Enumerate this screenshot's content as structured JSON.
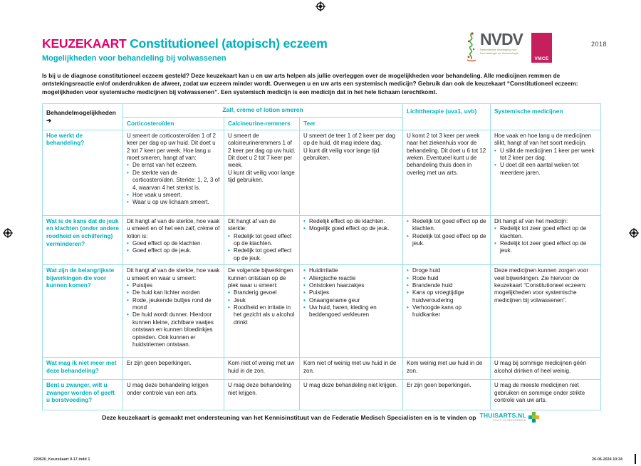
{
  "page": {
    "title_prefix": "KEUZEKAART",
    "title_rest": " Constitutioneel (atopisch) eczeem",
    "subtitle": "Mogelijkheden voor behandeling bij volwassenen",
    "year": "2018",
    "intro": "Is bij u de diagnose constitutioneel eczeem gesteld? Deze keuzekaart kan u en uw arts helpen als jullie overleggen over de mogelijkheden voor behandeling. Alle medicijnen remmen de ontstekingsreactie en/of onderdrukken de afweer, zodat uw eczeem minder wordt. Overwegen u en uw arts een systemisch medicijn? Gebruik dan ook de keuzekaart “Constitutioneel eczeem: mogelijkheden voor systemische medicijnen bij volwassenen”. Een systemisch medicijn is een medicijn dat in het hele lichaam terechtkomt."
  },
  "logos": {
    "nvdv": "NVDV",
    "nvdv_sub_line1": "Nederlandse Vereniging voor",
    "nvdv_sub_line2": "Dermatologie en Venereologie",
    "vmce": "VMCE"
  },
  "colors": {
    "teal": "#00b0ba",
    "pink": "#e2006a",
    "table_border": "#9adfe4",
    "vmce_magenta": "#c51f5d"
  },
  "table": {
    "corner_label": "Behandelmogelijkheden",
    "corner_arrow": "➔",
    "group_header": "Zalf, crème of lotion smeren",
    "sub_columns": [
      "Corticosteroïden",
      "Calcineurine-remmers",
      "Teer"
    ],
    "light_header": "Lichttherapie (uva1, uvb)",
    "systemic_header": "Systemische medicijnen",
    "rows": [
      {
        "label": "Hoe werkt de behandeling?",
        "cells": [
          {
            "intro": "U smeert de corticosteroïden 1 of 2 keer per dag op uw huid. Dit doet u 2 tot 7 keer per week. Hoe lang u moet smeren, hangt af van:",
            "bullets": [
              "De ernst van het eczeem.",
              "De sterkte van de corticosteroïden. Sterkte: 1, 2, 3 of 4, waarvan 4 het sterkst is.",
              "Hoe vaak u smeert.",
              "Waar u op uw lichaam smeert."
            ]
          },
          {
            "intro": "U smeert de calcineurineremmers 1 of 2 keer per dag op uw huid. Dit doet u 2 tot 7 keer per week.\nU kunt dit veilig voor lange tijd gebruiken."
          },
          {
            "intro": "U smeert de teer 1 of 2 keer per dag op de huid, dit mag iedere dag.\nU kunt dit veilig voor lange tijd gebruiken."
          },
          {
            "intro": "U komt 2 tot 3 keer per week naar het ziekenhuis voor de behandeling. Dit doet u 6 tot 12 weken. Eventueel kunt u de behandeling thuis doen in overleg met uw arts."
          },
          {
            "intro": "Hoe vaak en hoe lang u de medicijnen slikt, hangt af van het soort medicijn.",
            "bullets": [
              "U slikt de medicijnen 1 keer per week tot 2 keer per dag.",
              "U doet dit een aantal weken tot meerdere jaren."
            ]
          }
        ]
      },
      {
        "label": "Wat is de kans dat de jeuk en klachten (onder andere roodheid en schilfering) verminderen?",
        "cells": [
          {
            "intro": "Dit hangt af van de sterkte, hoe vaak u smeert en of het een zalf, crème of lotion is:",
            "bullets": [
              "Goed effect op de klachten.",
              "Goed effect op de jeuk."
            ]
          },
          {
            "intro": "Dit hangt af van de sterkte:",
            "bullets": [
              "Redelijk tot goed effect op de klachten.",
              "Redelijk tot goed effect op de jeuk."
            ]
          },
          {
            "bullets": [
              "Redelijk effect op de klachten.",
              "Mogelijk goed effect op de jeuk."
            ]
          },
          {
            "bullets": [
              "Redelijk tot goed effect op de klachten.",
              "Redelijk tot goed effect op de jeuk."
            ]
          },
          {
            "intro": "Dit hangt af van het medicijn:",
            "bullets": [
              "Redelijk tot zeer goed effect op de klachten.",
              "Redelijk tot zeer goed effect op de jeuk."
            ]
          }
        ]
      },
      {
        "label": "Wat zijn de belangrijkste bijwerkingen die voor kunnen komen?",
        "cells": [
          {
            "intro": "Dit hangt af van de sterkte, hoe vaak u smeert en waar u smeert:",
            "bullets": [
              "Puistjes",
              "De huid kan lichter worden",
              "Rode, jeukende bultjes rond de mond",
              "De huid wordt dunner. Hierdoor kunnen kleine, zichtbare vaatjes ontstaan en kunnen bloedinkjes optreden. Ook kunnen er huidstriemen ontstaan."
            ]
          },
          {
            "intro": "De volgende bijwerkingen kunnen ontstaan op de plek waar u smeert:",
            "bullets": [
              "Branderig gevoel",
              "Jeuk",
              "Roodheid en irritatie in het gezicht als u alcohol drinkt"
            ]
          },
          {
            "bullets": [
              "Huidirritatie",
              "Allergische reactie",
              "Ontstoken haarzakjes",
              "Puistjes",
              "Onaangename geur",
              "Uw huid, haren, kleding en beddengoed verkleuren"
            ]
          },
          {
            "bullets": [
              "Droge huid",
              "Rode huid",
              "Brandende huid",
              "Kans op vroegtijdige huidveroudering",
              "Verhoogde kans op huidkanker"
            ]
          },
          {
            "intro": "Deze medicijnen kunnen zorgen voor veel bijwerkingen. Zie hiervoor de keuzekaart “Constitutioneel eczeem: mogelijkheden voor systemische medicijnen bij volwassenen”."
          }
        ]
      },
      {
        "label": "Wat mag ik niet meer met deze behandeling?",
        "cells": [
          {
            "intro": "Er zijn geen beperkingen."
          },
          {
            "intro": "Kom niet of weinig met uw huid in de zon."
          },
          {
            "intro": "Kom niet of weinig met uw huid in de zon."
          },
          {
            "intro": "Kom weinig met uw huid in de zon."
          },
          {
            "intro": "U mag bij sommige medicijnen géén alcohol drinken of heel weinig."
          }
        ]
      },
      {
        "label": "Bent u zwanger, wilt u zwanger worden of geeft u borstvoeding?",
        "cells": [
          {
            "intro": "U mag deze behandeling krijgen onder controle van een arts."
          },
          {
            "intro": "U mag deze behandeling niet krijgen."
          },
          {
            "intro": "U mag deze behandeling niet krijgen."
          },
          {
            "intro": "Er zijn geen beperkingen."
          },
          {
            "intro": "U mag de meeste medicijnen niet gebruiken en sommige onder strikte controle van uw arts."
          }
        ]
      }
    ]
  },
  "footer": {
    "text": "Deze keuzekaart is gemaakt met ondersteuning van het Kennisinstituut van de Federatie Medisch Specialisten en is te vinden op",
    "logo": "THUISARTS.NL",
    "logo_tagline": "THUIS IN GEZONDHEID"
  },
  "print_info": {
    "left": "220620_Keuzekaart 9-17.indd   1",
    "right": "26-06-2024   10:34"
  }
}
